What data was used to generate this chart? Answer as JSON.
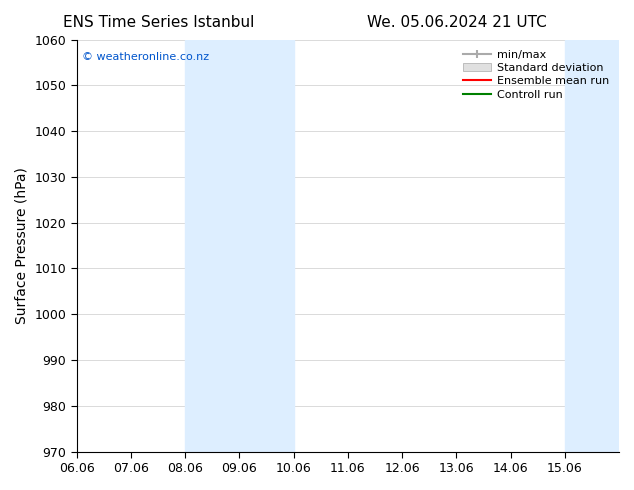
{
  "title_left": "ENS Time Series Istanbul",
  "title_right": "We. 05.06.2024 21 UTC",
  "ylabel": "Surface Pressure (hPa)",
  "ylim": [
    970,
    1060
  ],
  "yticks": [
    970,
    980,
    990,
    1000,
    1010,
    1020,
    1030,
    1040,
    1050,
    1060
  ],
  "xlim_start": 0,
  "xlim_end": 10,
  "xtick_labels": [
    "06.06",
    "07.06",
    "08.06",
    "09.06",
    "10.06",
    "11.06",
    "12.06",
    "13.06",
    "14.06",
    "15.06"
  ],
  "shaded_regions": [
    {
      "x_start": 2.0,
      "x_end": 4.0
    },
    {
      "x_start": 9.0,
      "x_end": 10.0
    }
  ],
  "shaded_color": "#ddeeff",
  "watermark_text": "© weatheronline.co.nz",
  "watermark_color": "#0055cc",
  "legend_entries": [
    "min/max",
    "Standard deviation",
    "Ensemble mean run",
    "Controll run"
  ],
  "legend_colors": [
    "#aaaaaa",
    "#cccccc",
    "#ff0000",
    "#008000"
  ],
  "legend_line_styles": [
    "-",
    "-",
    "-",
    "-"
  ],
  "bg_color": "#ffffff",
  "plot_bg_color": "#ffffff",
  "grid_color": "#cccccc",
  "tick_label_fontsize": 9,
  "axis_label_fontsize": 10,
  "title_fontsize": 11
}
